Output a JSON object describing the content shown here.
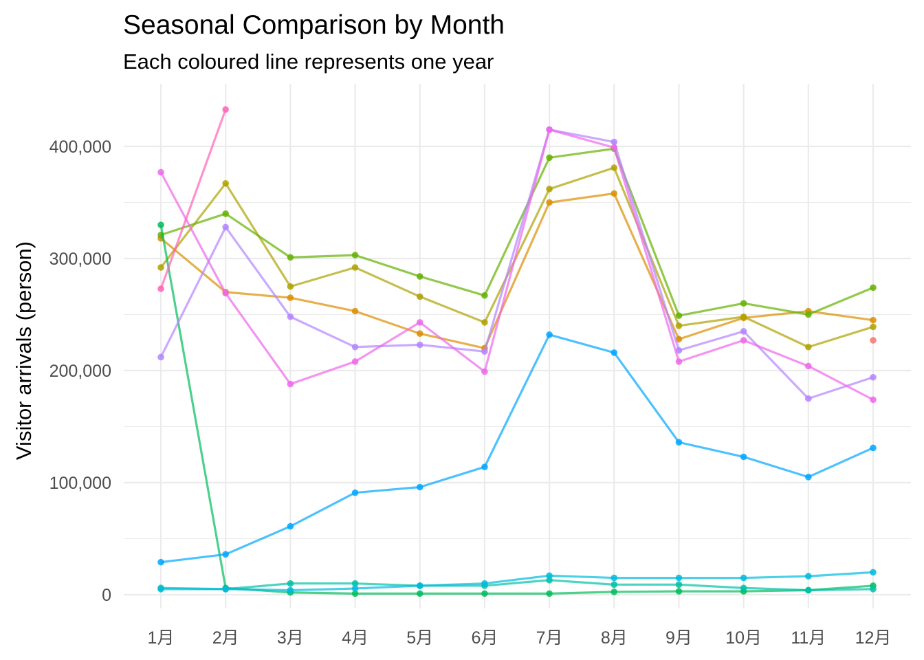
{
  "chart_data": {
    "type": "line",
    "title": "Seasonal Comparison by Month",
    "subtitle": "Each coloured line represents one year",
    "xlabel": "",
    "ylabel": "Visitor arrivals (person)",
    "categories": [
      "1月",
      "2月",
      "3月",
      "4月",
      "5月",
      "6月",
      "7月",
      "8月",
      "9月",
      "10月",
      "11月",
      "12月"
    ],
    "ylim": [
      -12000,
      450000
    ],
    "yticks": [
      0,
      100000,
      200000,
      300000,
      400000
    ],
    "ytick_labels": [
      "0",
      "100,000",
      "200,000",
      "300,000",
      "400,000"
    ],
    "grid": true,
    "legend": "none",
    "series": [
      {
        "color": "#F8766D",
        "values": [
          null,
          null,
          null,
          null,
          null,
          null,
          null,
          null,
          null,
          null,
          null,
          227000
        ]
      },
      {
        "color": "#DB8E00",
        "values": [
          318000,
          270000,
          265000,
          253000,
          233000,
          220000,
          350000,
          358000,
          228000,
          247000,
          253000,
          245000
        ]
      },
      {
        "color": "#AEA200",
        "values": [
          292000,
          367000,
          275000,
          292000,
          266000,
          243000,
          362000,
          381000,
          240000,
          248000,
          221000,
          239000
        ]
      },
      {
        "color": "#64B200",
        "values": [
          321000,
          340000,
          301000,
          303000,
          284000,
          267000,
          390000,
          398000,
          249000,
          260000,
          250000,
          274000
        ]
      },
      {
        "color": "#00BD5C",
        "values": [
          330000,
          6000,
          2000,
          1000,
          1000,
          1000,
          1000,
          2500,
          3000,
          3000,
          4000,
          8000
        ]
      },
      {
        "color": "#00C1A7",
        "values": [
          6000,
          5000,
          10000,
          10000,
          8000,
          8000,
          13000,
          9000,
          9000,
          6000,
          4000,
          5000
        ]
      },
      {
        "color": "#00BADE",
        "values": [
          5000,
          5000,
          4000,
          5500,
          8000,
          10000,
          17000,
          15000,
          15000,
          15000,
          16500,
          20000
        ]
      },
      {
        "color": "#00A6FF",
        "values": [
          29000,
          36000,
          61000,
          91000,
          96000,
          114000,
          232000,
          216000,
          136000,
          123000,
          105000,
          131000
        ]
      },
      {
        "color": "#B385FF",
        "values": [
          212000,
          328000,
          248000,
          221000,
          223000,
          217000,
          415000,
          404000,
          218000,
          235000,
          175000,
          194000
        ]
      },
      {
        "color": "#EF67EB",
        "values": [
          377000,
          269000,
          188000,
          208000,
          243000,
          199000,
          415000,
          399000,
          208000,
          227000,
          204000,
          174000
        ]
      },
      {
        "color": "#FF63B6",
        "values": [
          273000,
          433000,
          null,
          null,
          null,
          null,
          null,
          null,
          null,
          null,
          null,
          null
        ]
      }
    ]
  }
}
